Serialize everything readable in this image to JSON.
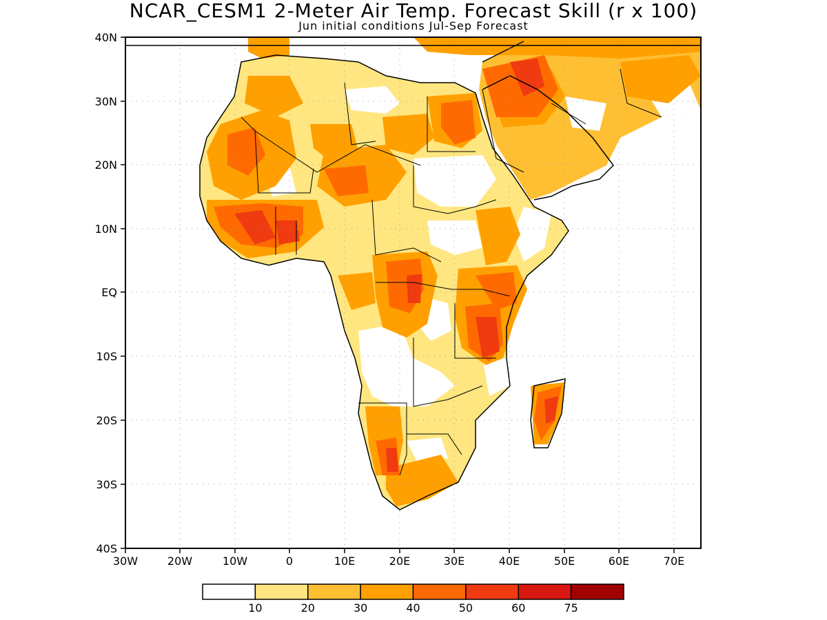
{
  "title": "NCAR_CESM1 2-Meter Air Temp. Forecast Skill (r x 100)",
  "subtitle": "Jun initial conditions  Jul-Sep Forecast",
  "map": {
    "lon_range": [
      -30,
      75
    ],
    "lat_range": [
      -40,
      40
    ],
    "lat_labels": [
      "40N",
      "30N",
      "20N",
      "10N",
      "EQ",
      "10S",
      "20S",
      "30S",
      "40S"
    ],
    "lon_labels": [
      "30W",
      "20W",
      "10W",
      "0",
      "10E",
      "20E",
      "30E",
      "40E",
      "50E",
      "60E",
      "70E"
    ],
    "grid": "dotted",
    "region": "Africa and Middle East"
  },
  "colorbar": {
    "colors": [
      "#ffffff",
      "#ffe680",
      "#ffbf33",
      "#ffa000",
      "#ff6a00",
      "#f03a10",
      "#d81810",
      "#a00000"
    ],
    "labels": [
      "10",
      "20",
      "30",
      "40",
      "50",
      "60",
      "75"
    ]
  }
}
